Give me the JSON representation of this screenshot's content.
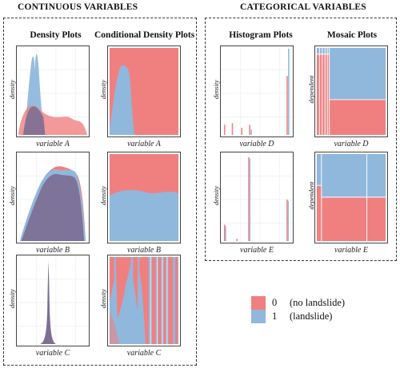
{
  "sections": {
    "continuous": "CONTINUOUS VARIABLES",
    "categorical": "CATEGORICAL VARIABLES"
  },
  "columns": {
    "density": "Density Plots",
    "conditional": "Conditional Density Plots",
    "histogram": "Histogram Plots",
    "mosaic": "Mosaic Plots"
  },
  "labels": {
    "density": "density",
    "dependent": "dependent",
    "var_a": "variable A",
    "var_b": "variable B",
    "var_c": "variable C",
    "var_d": "variable D",
    "var_e": "variable E"
  },
  "legend": {
    "items": [
      {
        "key": "0",
        "desc": "(no landslide)",
        "color": "#f08080"
      },
      {
        "key": "1",
        "desc": "(landslide)",
        "color": "#8fb8dc"
      }
    ]
  },
  "colors": {
    "class0": "#f08080",
    "class1": "#8fb8dc",
    "overlap": "#7d6f94"
  }
}
